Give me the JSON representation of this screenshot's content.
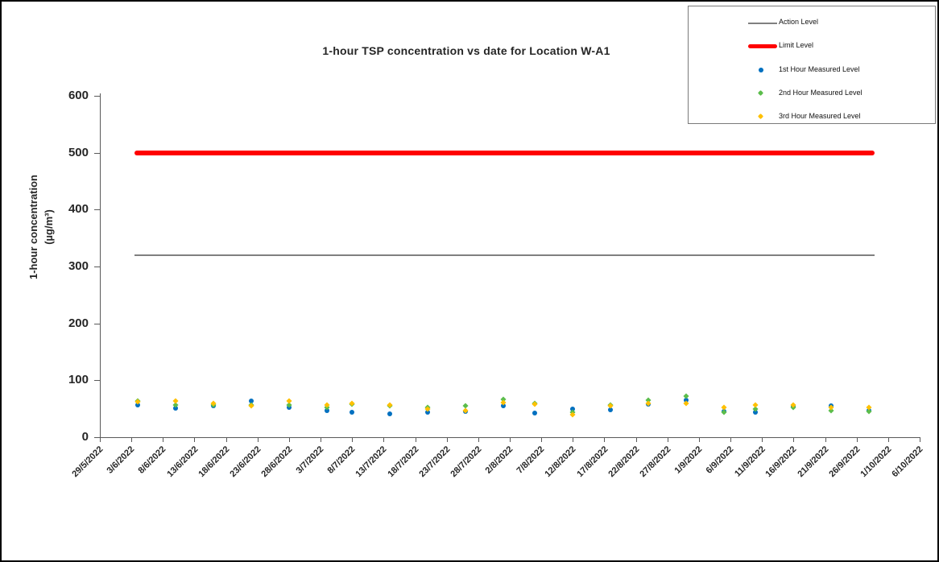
{
  "window": {
    "background": "#FFFFFF",
    "frame_border_color": "#000000"
  },
  "chart_data": {
    "type": "scatter",
    "title": "1-hour TSP concentration vs date for Location W-A1",
    "ylabel_line1": "1-hour concentration",
    "ylabel_line2": "(µg/m³)",
    "xlabel": "",
    "grid": false,
    "legend_position": "top-right",
    "y_axis": {
      "min": 0,
      "max": 600,
      "tick_interval": 100,
      "ticks": [
        0,
        100,
        200,
        300,
        400,
        500,
        600
      ]
    },
    "x_axis": {
      "tick_interval_days": 5,
      "tick_labels": [
        "29/5/2022",
        "3/6/2022",
        "8/6/2022",
        "13/6/2022",
        "18/6/2022",
        "23/6/2022",
        "28/6/2022",
        "3/7/2022",
        "8/7/2022",
        "13/7/2022",
        "18/7/2022",
        "23/7/2022",
        "28/7/2022",
        "2/8/2022",
        "7/8/2022",
        "12/8/2022",
        "17/8/2022",
        "22/8/2022",
        "27/8/2022",
        "1/9/2022",
        "6/9/2022",
        "11/9/2022",
        "16/9/2022",
        "21/9/2022",
        "26/9/2022",
        "1/10/2022",
        "6/10/2022"
      ]
    },
    "reference_lines": [
      {
        "name": "Action Level",
        "value": 320,
        "color": "#808080",
        "thickness": 2,
        "span": [
          "4/6/2022",
          "28/9/2022"
        ]
      },
      {
        "name": "Limit Level",
        "value": 500,
        "color": "#FF0000",
        "thickness": 6,
        "span": [
          "4/6/2022",
          "28/9/2022"
        ]
      }
    ],
    "series": [
      {
        "name": "1st Hour Measured Level",
        "color": "#0070C0",
        "marker": "circle"
      },
      {
        "name": "2nd Hour Measured Level",
        "color": "#5BBD4B",
        "marker": "diamond"
      },
      {
        "name": "3rd Hour Measured Level",
        "color": "#FFC000",
        "marker": "diamond"
      }
    ],
    "points": [
      {
        "date": "4/6/2022",
        "values": [
          57,
          64,
          62
        ]
      },
      {
        "date": "10/6/2022",
        "values": [
          51,
          57,
          64
        ]
      },
      {
        "date": "16/6/2022",
        "values": [
          55,
          56,
          60
        ]
      },
      {
        "date": "22/6/2022",
        "values": [
          63,
          56,
          55
        ]
      },
      {
        "date": "28/6/2022",
        "values": [
          52,
          56,
          63
        ]
      },
      {
        "date": "4/7/2022",
        "values": [
          46,
          52,
          56
        ]
      },
      {
        "date": "8/7/2022",
        "values": [
          44,
          58,
          60
        ]
      },
      {
        "date": "14/7/2022",
        "values": [
          41,
          55,
          57
        ]
      },
      {
        "date": "20/7/2022",
        "values": [
          44,
          52,
          50
        ]
      },
      {
        "date": "26/7/2022",
        "values": [
          45,
          55,
          47
        ]
      },
      {
        "date": "1/8/2022",
        "values": [
          55,
          67,
          61
        ]
      },
      {
        "date": "6/8/2022",
        "values": [
          42,
          60,
          58
        ]
      },
      {
        "date": "12/8/2022",
        "values": [
          50,
          44,
          39
        ]
      },
      {
        "date": "18/8/2022",
        "values": [
          48,
          57,
          55
        ]
      },
      {
        "date": "24/8/2022",
        "values": [
          58,
          65,
          60
        ]
      },
      {
        "date": "30/8/2022",
        "values": [
          65,
          72,
          60
        ]
      },
      {
        "date": "5/9/2022",
        "values": [
          45,
          44,
          53
        ]
      },
      {
        "date": "10/9/2022",
        "values": [
          44,
          50,
          57
        ]
      },
      {
        "date": "16/9/2022",
        "values": [
          54,
          53,
          56
        ]
      },
      {
        "date": "22/9/2022",
        "values": [
          55,
          47,
          52
        ]
      },
      {
        "date": "28/9/2022",
        "values": [
          47,
          45,
          53
        ]
      }
    ]
  }
}
